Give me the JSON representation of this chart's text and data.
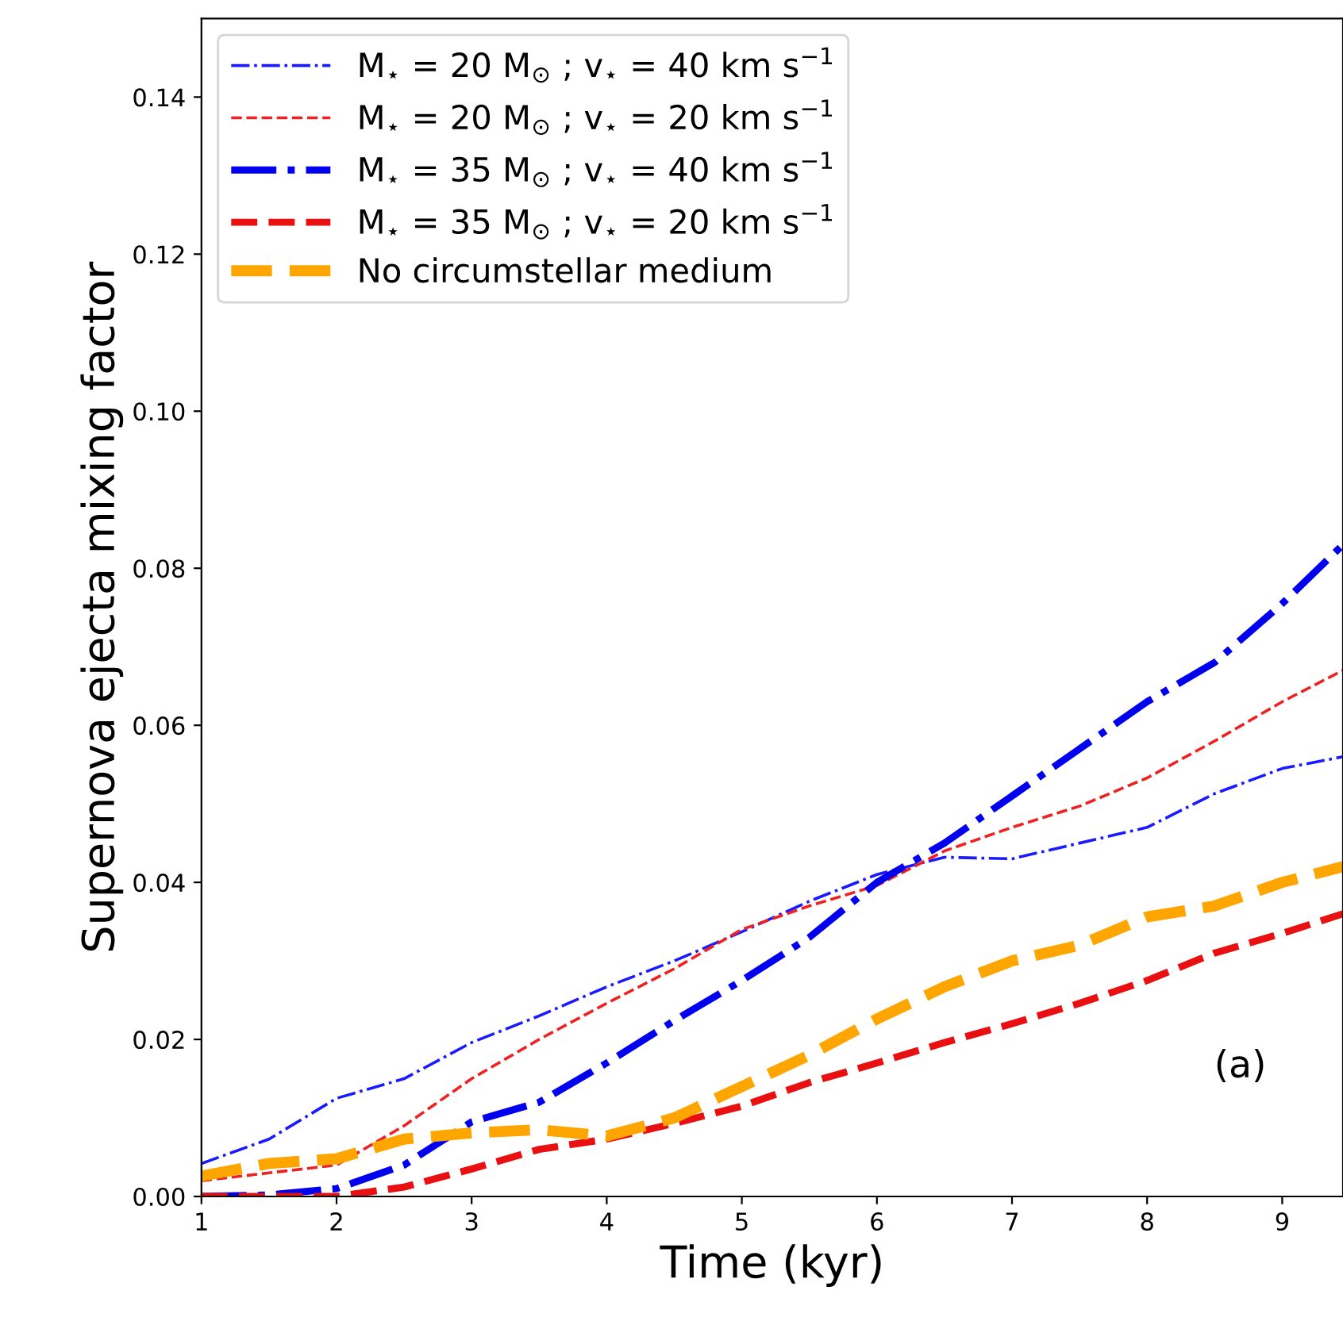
{
  "chart_data": {
    "type": "line",
    "xlabel": "Time (kyr)",
    "ylabel": "Supernova ejecta mixing factor",
    "x": [
      1,
      1.5,
      2,
      2.5,
      3,
      3.5,
      4,
      4.5,
      5,
      5.5,
      6,
      6.5,
      7,
      7.5,
      8,
      8.5,
      9,
      9.45
    ],
    "series": [
      {
        "name": "M$_{⋆}$ = 20 M$_{⊙}$ ; v$_{⋆}$ = 40 km s$^{−1}$",
        "color": "#1a1aff",
        "line_style": "dashdot",
        "values": [
          0.0042,
          0.0073,
          0.0125,
          0.015,
          0.0196,
          0.023,
          0.0267,
          0.03,
          0.0337,
          0.0376,
          0.041,
          0.0432,
          0.043,
          0.045,
          0.047,
          0.0513,
          0.0545,
          0.056
        ]
      },
      {
        "name": "M$_{⋆}$ = 20 M$_{⊙}$ ; v$_{⋆}$ = 20 km s$^{−1}$",
        "color": "#ee2222",
        "line_style": "dashed",
        "values": [
          0.002,
          0.003,
          0.004,
          0.009,
          0.015,
          0.02,
          0.0246,
          0.029,
          0.034,
          0.037,
          0.0396,
          0.044,
          0.047,
          0.0497,
          0.0533,
          0.058,
          0.063,
          0.067
        ]
      },
      {
        "name": "M$_{⋆}$ = 35 M$_{⊙}$ ; v$_{⋆}$ = 40 km s$^{−1}$",
        "color": "#0000ee",
        "line_style": "dashdot",
        "values": [
          0.0,
          0.0002,
          0.001,
          0.004,
          0.0095,
          0.012,
          0.017,
          0.0224,
          0.0275,
          0.033,
          0.04,
          0.045,
          0.051,
          0.057,
          0.063,
          0.068,
          0.0755,
          0.083
        ]
      },
      {
        "name": "M$_{⋆}$ = 35 M$_{⊙}$ ; v$_{⋆}$ = 20 km s$^{−1}$",
        "color": "#e81010",
        "line_style": "dashed",
        "values": [
          0.0,
          0.0,
          0.0,
          0.0012,
          0.0035,
          0.006,
          0.0073,
          0.0093,
          0.0115,
          0.0145,
          0.017,
          0.0196,
          0.022,
          0.0246,
          0.0275,
          0.031,
          0.0335,
          0.036
        ]
      },
      {
        "name": "No circumstellar medium",
        "color": "#ffa500",
        "line_style": "dashed",
        "values": [
          0.0026,
          0.0042,
          0.0048,
          0.0073,
          0.0081,
          0.0085,
          0.0077,
          0.01,
          0.014,
          0.018,
          0.0226,
          0.0267,
          0.03,
          0.032,
          0.0356,
          0.037,
          0.04,
          0.042
        ]
      }
    ],
    "xlim": [
      1,
      9.45
    ],
    "xticks": [
      1,
      2,
      3,
      4,
      5,
      6,
      7,
      8,
      9
    ],
    "ylim": [
      0,
      0.15
    ],
    "yticks": [
      {
        "value": 0,
        "label": "0.00"
      },
      {
        "value": 0.02,
        "label": "0.02"
      },
      {
        "value": 0.04,
        "label": "0.04"
      },
      {
        "value": 0.06,
        "label": "0.06"
      },
      {
        "value": 0.08,
        "label": "0.08"
      },
      {
        "value": 0.1,
        "label": "0.10"
      },
      {
        "value": 0.12,
        "label": "0.12"
      },
      {
        "value": 0.14,
        "label": "0.14"
      }
    ],
    "annotations": [
      "(a)"
    ],
    "legend": "top left",
    "grid": false
  }
}
